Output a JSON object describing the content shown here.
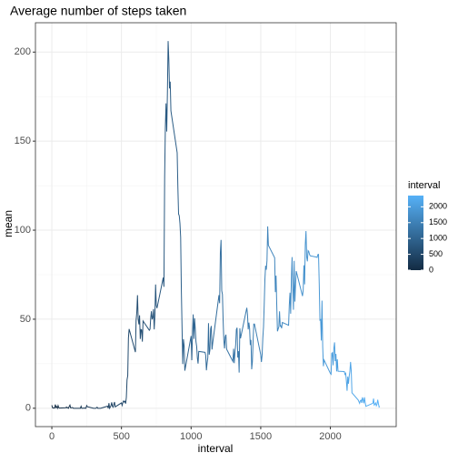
{
  "chart_data": {
    "type": "line",
    "title": "Average number of steps taken",
    "x_label": "interval",
    "y_label": "mean",
    "x": [
      0,
      5,
      10,
      15,
      20,
      25,
      30,
      35,
      40,
      45,
      50,
      55,
      100,
      105,
      110,
      115,
      120,
      125,
      130,
      135,
      140,
      145,
      150,
      155,
      200,
      205,
      210,
      215,
      220,
      225,
      230,
      235,
      240,
      245,
      250,
      255,
      300,
      305,
      310,
      315,
      320,
      325,
      330,
      335,
      340,
      345,
      350,
      355,
      400,
      405,
      410,
      415,
      420,
      425,
      430,
      435,
      440,
      445,
      450,
      455,
      500,
      505,
      510,
      515,
      520,
      525,
      530,
      535,
      540,
      545,
      550,
      555,
      600,
      605,
      610,
      615,
      620,
      625,
      630,
      635,
      640,
      645,
      650,
      655,
      700,
      705,
      710,
      715,
      720,
      725,
      730,
      735,
      740,
      745,
      750,
      755,
      800,
      805,
      810,
      815,
      820,
      825,
      830,
      835,
      840,
      845,
      850,
      855,
      900,
      905,
      910,
      915,
      920,
      925,
      930,
      935,
      940,
      945,
      950,
      955,
      1000,
      1005,
      1010,
      1015,
      1020,
      1025,
      1030,
      1035,
      1040,
      1045,
      1050,
      1055,
      1100,
      1105,
      1110,
      1115,
      1120,
      1125,
      1130,
      1135,
      1140,
      1145,
      1150,
      1155,
      1200,
      1205,
      1210,
      1215,
      1220,
      1225,
      1230,
      1235,
      1240,
      1245,
      1250,
      1255,
      1300,
      1305,
      1310,
      1315,
      1320,
      1325,
      1330,
      1335,
      1340,
      1345,
      1350,
      1355,
      1400,
      1405,
      1410,
      1415,
      1420,
      1425,
      1430,
      1435,
      1440,
      1445,
      1450,
      1455,
      1500,
      1505,
      1510,
      1515,
      1520,
      1525,
      1530,
      1535,
      1540,
      1545,
      1550,
      1555,
      1600,
      1605,
      1610,
      1615,
      1620,
      1625,
      1630,
      1635,
      1640,
      1645,
      1650,
      1655,
      1700,
      1705,
      1710,
      1715,
      1720,
      1725,
      1730,
      1735,
      1740,
      1745,
      1750,
      1755,
      1800,
      1805,
      1810,
      1815,
      1820,
      1825,
      1830,
      1835,
      1840,
      1845,
      1850,
      1855,
      1900,
      1905,
      1910,
      1915,
      1920,
      1925,
      1930,
      1935,
      1940,
      1945,
      1950,
      1955,
      2000,
      2005,
      2010,
      2015,
      2020,
      2025,
      2030,
      2035,
      2040,
      2045,
      2050,
      2055,
      2100,
      2105,
      2110,
      2115,
      2120,
      2125,
      2130,
      2135,
      2140,
      2145,
      2150,
      2155,
      2200,
      2205,
      2210,
      2215,
      2220,
      2225,
      2230,
      2235,
      2240,
      2245,
      2250,
      2255,
      2300,
      2305,
      2310,
      2315,
      2320,
      2325,
      2330,
      2335,
      2340,
      2345,
      2350,
      2355
    ],
    "series": [
      {
        "name": "mean",
        "values": [
          1.7,
          0.3,
          0.1,
          0.2,
          0.1,
          2.1,
          0.5,
          0.9,
          0,
          1.5,
          0.3,
          0.1,
          0.3,
          0.7,
          0.2,
          0.3,
          0,
          1.1,
          1.8,
          0.2,
          0.2,
          0.4,
          0.3,
          0,
          0,
          0,
          1.1,
          0,
          0,
          0.1,
          0,
          0.2,
          0,
          0,
          1.5,
          0.9,
          0,
          0,
          0,
          0,
          0.2,
          0.6,
          0,
          0,
          0,
          0,
          0,
          0.1,
          1.2,
          0,
          2.9,
          0,
          0.7,
          1.5,
          3.3,
          1.1,
          0.6,
          2.2,
          3.5,
          0.8,
          3.0,
          1.6,
          3.2,
          4.1,
          3.5,
          3.9,
          2.6,
          6.1,
          16,
          18.3,
          39.5,
          44.5,
          31.5,
          49.3,
          53.8,
          63.5,
          50,
          47.1,
          52.2,
          38.9,
          44.2,
          44,
          37.4,
          49,
          43.8,
          44.4,
          50.5,
          54.5,
          49.9,
          51,
          55.7,
          44.3,
          52.3,
          69.5,
          57.8,
          56.2,
          73.4,
          68.2,
          129.4,
          157.5,
          171.2,
          155.4,
          177.3,
          206.2,
          195.9,
          179.6,
          183.4,
          167,
          143.5,
          124,
          109.1,
          108.1,
          103.7,
          96,
          66.2,
          45.2,
          24.8,
          38.8,
          35,
          21.1,
          40.6,
          27,
          42.4,
          52.7,
          38.9,
          50.5,
          44.3,
          37.4,
          34.7,
          28.3,
          25.1,
          31.9,
          31.4,
          29.7,
          21.3,
          25.5,
          28.4,
          47.8,
          30.1,
          32.7,
          44.5,
          46.2,
          33,
          36.5,
          63.5,
          59,
          87.4,
          94.5,
          66,
          63.9,
          49.3,
          38.2,
          33.6,
          40.1,
          41.3,
          33.2,
          26.3,
          33.4,
          25.3,
          31.6,
          35.6,
          44.2,
          45.2,
          28.5,
          32.1,
          20,
          44.9,
          39.3,
          56.4,
          52.6,
          44.3,
          48.1,
          44.9,
          35.5,
          38.4,
          21.9,
          26,
          37.4,
          47.3,
          47.3,
          30,
          26,
          30,
          39.5,
          45.8,
          58.2,
          72.4,
          80,
          77.8,
          83,
          102.1,
          91.5,
          84.5,
          65.2,
          74.5,
          58,
          43.2,
          44.5,
          45.7,
          54.4,
          46.1,
          46.3,
          44.9,
          48.2,
          46.6,
          57.9,
          64.9,
          53.1,
          72.2,
          84.9,
          67.5,
          55.3,
          82.8,
          59.9,
          68.9,
          77,
          63,
          66.5,
          80.3,
          69.6,
          91.9,
          99.5,
          84.8,
          82.5,
          88.5,
          88,
          86.5,
          85.6,
          84.9,
          84.7,
          86.3,
          86.4,
          70.1,
          49.5,
          49.8,
          38,
          60.4,
          34.4,
          23.6,
          27.1,
          19.6,
          19.1,
          30.8,
          31.2,
          24.1,
          33.6,
          37,
          26.5,
          30.5,
          20.7,
          27.5,
          20.8,
          20.6,
          19,
          19.6,
          15.4,
          9.8,
          17.8,
          13.8,
          17.9,
          20.6,
          26,
          21,
          8.7,
          4.6,
          3.7,
          2.8,
          4.2,
          4.6,
          3,
          6.1,
          4.7,
          2.8,
          6.1,
          3.2,
          1.1,
          2.6,
          2.8,
          5.4,
          1.8,
          2.3,
          3,
          1.4,
          2.2,
          4.8,
          2.6,
          0.7,
          1.1
        ]
      }
    ],
    "xlim": [
      -117.75,
      2472.75
    ],
    "xticks": [
      0,
      500,
      1000,
      1500,
      2000
    ],
    "ylim": [
      -10.31,
      216.48
    ],
    "yticks": [
      0,
      50,
      100,
      150,
      200
    ],
    "grid": true,
    "color_scale": {
      "title": "interval",
      "low": "#132B43",
      "high": "#56B1F7",
      "limits": [
        0,
        2355
      ],
      "ticks": [
        0,
        500,
        1000,
        1500,
        2000
      ]
    },
    "legend": "right"
  }
}
